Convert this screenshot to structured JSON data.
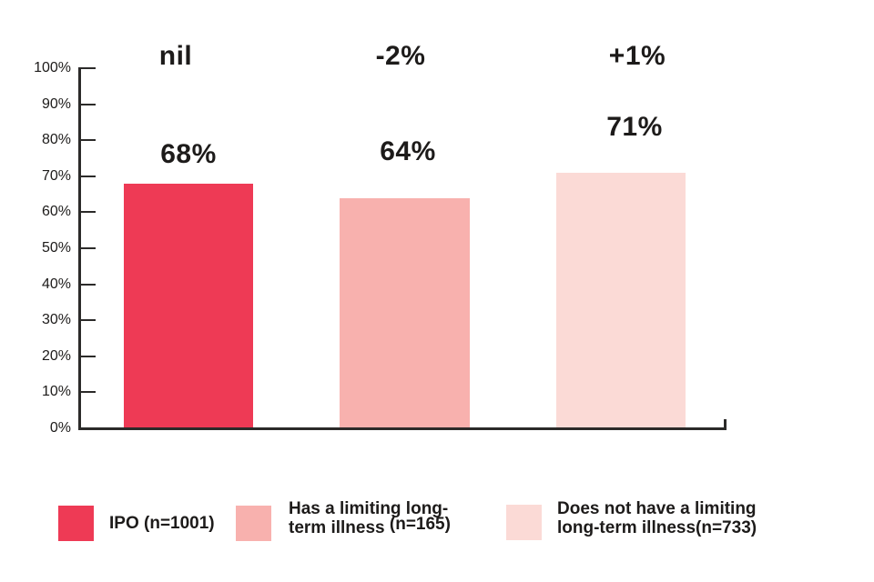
{
  "chart_data": {
    "type": "bar",
    "title": "",
    "categories": [
      "IPO (n=1001)",
      "Has a limiting long-term illness (n=165)",
      "Does not have a limiting long-term illness(n=733)"
    ],
    "values": [
      68,
      64,
      71
    ],
    "value_labels": [
      "68%",
      "64%",
      "71%"
    ],
    "change_labels": [
      "nil",
      "-2%",
      "+1%"
    ],
    "bar_colors": [
      "#EE3A55",
      "#F8B1AE",
      "#FBDAD6"
    ],
    "axis_color": "#2B2A29",
    "text_color": "#1D1B1A",
    "xlabel": "",
    "ylabel": "",
    "ylim": [
      0,
      100
    ],
    "ytick_step": 10,
    "yticks": [
      "100%",
      "90%",
      "80%",
      "70%",
      "60%",
      "50%",
      "40%",
      "30%",
      "20%",
      "10%",
      "0%"
    ],
    "grid": false,
    "legend_position": "bottom"
  },
  "legend": {
    "items": [
      {
        "label": "IPO (n=1001)",
        "color": "#EE3A55"
      },
      {
        "label_line1": "Has a limiting long-",
        "label_line2_prefix": "term illness ",
        "label_line2_raised": "(n=165)",
        "color": "#F8B1AE"
      },
      {
        "label_line1": "Does not have a limiting",
        "label_line2": "long-term illness(n=733)",
        "color": "#FBDAD6"
      }
    ]
  }
}
